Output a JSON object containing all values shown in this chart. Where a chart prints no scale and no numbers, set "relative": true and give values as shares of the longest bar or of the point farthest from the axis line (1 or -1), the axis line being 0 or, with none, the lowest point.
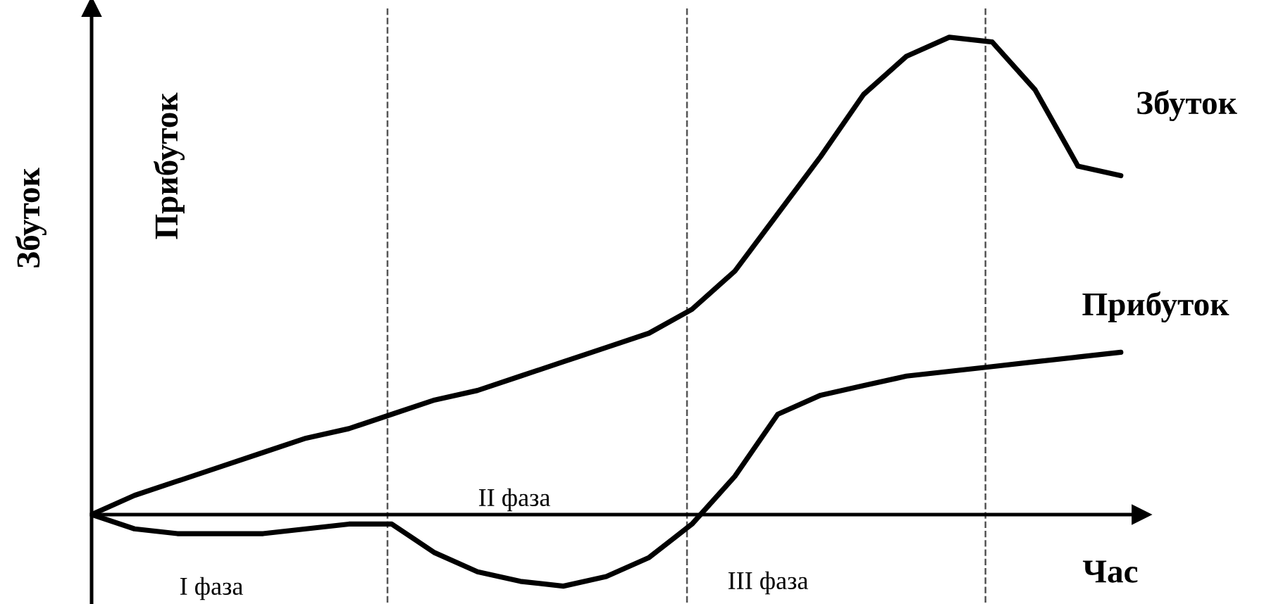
{
  "chart_data": {
    "type": "line",
    "relative": true,
    "xlabel": "Час",
    "ylabel": "Збуток",
    "categories": [
      null,
      null,
      null,
      null,
      null,
      null,
      null,
      null,
      null,
      null,
      null,
      null,
      null,
      null,
      null,
      null,
      null,
      null,
      null,
      null,
      null,
      null,
      null,
      null,
      null
    ],
    "series": [
      {
        "name": "Збуток",
        "color": "#000000",
        "values": [
          0,
          0.04,
          0.07,
          0.1,
          0.13,
          0.16,
          0.18,
          0.21,
          0.24,
          0.26,
          0.29,
          0.32,
          0.35,
          0.38,
          0.43,
          0.51,
          0.63,
          0.75,
          0.88,
          0.96,
          1.0,
          0.99,
          0.89,
          0.73,
          0.71
        ]
      },
      {
        "name": "Прибуток",
        "color": "#000000",
        "values": [
          0,
          -0.03,
          -0.04,
          -0.04,
          -0.04,
          -0.03,
          -0.02,
          -0.02,
          -0.08,
          -0.12,
          -0.14,
          -0.15,
          -0.13,
          -0.09,
          -0.02,
          0.08,
          0.21,
          0.25,
          0.27,
          0.29,
          0.3,
          0.31,
          0.32,
          0.33,
          0.34
        ]
      }
    ],
    "annotations": [
      "Прибуток",
      "I фаза",
      "II фаза",
      "III фаза"
    ],
    "legend": false,
    "marker": "none",
    "line_style": "solid"
  }
}
